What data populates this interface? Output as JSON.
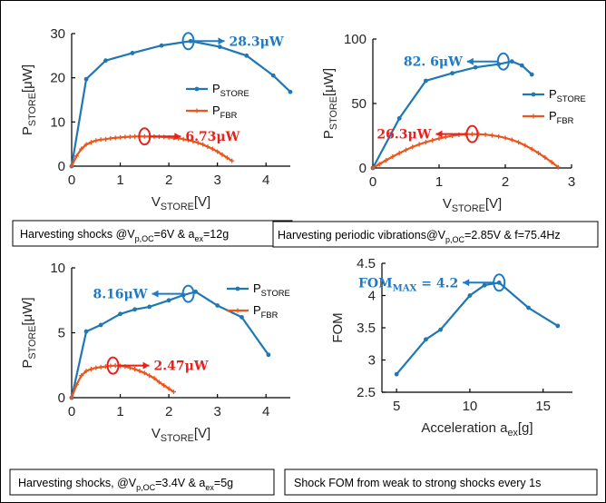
{
  "colors": {
    "store": "#1f77b4",
    "fbr": "#e8571d",
    "annot_store": "#1f7ac4",
    "annot_fbr": "#e8211d"
  },
  "chart_data": [
    {
      "type": "line",
      "id": "p1",
      "xlim": [
        0,
        4.5
      ],
      "ylim": [
        0,
        30
      ],
      "xticks": [
        0,
        1,
        2,
        3,
        4
      ],
      "yticks": [
        0,
        10,
        20,
        30
      ],
      "xlabel_main": "V",
      "xlabel_sub": "STORE",
      "xlabel_tail": "[V]",
      "ylabel_main": "P",
      "ylabel_sub": "STORE",
      "ylabel_tail": "[μW]",
      "series": [
        {
          "name_main": "P",
          "name_sub": "STORE",
          "role": "store",
          "marker": "dot",
          "x": [
            0,
            0.3,
            0.7,
            1.25,
            1.85,
            2.45,
            3.05,
            3.6,
            4.15,
            4.5
          ],
          "y": [
            0,
            19.7,
            23.9,
            25.6,
            27.3,
            28.3,
            27.0,
            25.0,
            20.5,
            16.8
          ]
        },
        {
          "name_main": "P",
          "name_sub": "FBR",
          "role": "fbr",
          "marker": "plus",
          "x": [
            0,
            0.1,
            0.2,
            0.3,
            0.4,
            0.5,
            0.6,
            0.7,
            0.8,
            0.9,
            1.0,
            1.1,
            1.2,
            1.3,
            1.4,
            1.5,
            1.6,
            1.7,
            1.8,
            1.9,
            2.0,
            2.1,
            2.2,
            2.3,
            2.4,
            2.5,
            2.6,
            2.7,
            2.8,
            2.9,
            3.0,
            3.1,
            3.2,
            3.3
          ],
          "y": [
            0,
            2.3,
            3.9,
            4.9,
            5.4,
            5.8,
            6.0,
            6.1,
            6.3,
            6.4,
            6.5,
            6.6,
            6.65,
            6.7,
            6.73,
            6.72,
            6.7,
            6.68,
            6.65,
            6.6,
            6.5,
            6.4,
            6.3,
            6.1,
            5.9,
            5.6,
            5.3,
            4.9,
            4.4,
            3.9,
            3.3,
            2.6,
            1.9,
            1.2
          ]
        }
      ],
      "annotations": [
        {
          "text": "28.3μW",
          "role": "store",
          "x": 2.4,
          "y": 28.3,
          "dir": "right"
        },
        {
          "text": "6.73μW",
          "role": "fbr",
          "x": 1.5,
          "y": 6.73,
          "dir": "right"
        }
      ],
      "caption": {
        "pre": "Harvesting shocks @V",
        "sub1": "p,OC",
        "mid": "=6V & a",
        "sub2": "ex",
        "post": "=12g"
      }
    },
    {
      "type": "line",
      "id": "p2",
      "xlim": [
        0,
        3
      ],
      "ylim": [
        0,
        100
      ],
      "xticks": [
        0,
        1,
        2,
        3
      ],
      "yticks": [
        0,
        50,
        100
      ],
      "xlabel_main": "V",
      "xlabel_sub": "STORE",
      "xlabel_tail": "[V]",
      "ylabel_main": "P",
      "ylabel_sub": "STORE",
      "ylabel_tail": "[μW]",
      "series": [
        {
          "name_main": "P",
          "name_sub": "STORE",
          "role": "store",
          "marker": "dot",
          "x": [
            0,
            0.4,
            0.8,
            1.2,
            1.55,
            1.9,
            2.1,
            2.25,
            2.4
          ],
          "y": [
            0,
            38.5,
            67.6,
            73.5,
            78.0,
            80.5,
            82.6,
            79.5,
            72.5
          ]
        },
        {
          "name_main": "P",
          "name_sub": "FBR",
          "role": "fbr",
          "marker": "plus",
          "x": [
            0,
            0.1,
            0.2,
            0.3,
            0.4,
            0.5,
            0.6,
            0.7,
            0.8,
            0.9,
            1.0,
            1.1,
            1.2,
            1.3,
            1.4,
            1.5,
            1.6,
            1.7,
            1.8,
            1.9,
            2.0,
            2.1,
            2.2,
            2.3,
            2.4,
            2.5,
            2.6,
            2.7,
            2.8
          ],
          "y": [
            0,
            3.0,
            6.0,
            8.8,
            11.5,
            14.0,
            16.3,
            18.3,
            20.0,
            21.5,
            22.9,
            24.0,
            25.0,
            25.7,
            26.1,
            26.3,
            26.2,
            25.9,
            25.3,
            24.5,
            23.3,
            21.8,
            19.9,
            17.5,
            14.7,
            11.6,
            8.2,
            4.5,
            0.6
          ]
        }
      ],
      "annotations": [
        {
          "text": "82. 6μW",
          "role": "store",
          "x": 1.97,
          "y": 82.6,
          "dir": "left"
        },
        {
          "text": "26.3μW",
          "role": "fbr",
          "x": 1.5,
          "y": 26.3,
          "dir": "left"
        }
      ],
      "caption": {
        "pre": "Harvesting periodic vibrations@V",
        "sub1": "p,OC",
        "mid": "=2.85V  & f=75.4Hz",
        "sub2": "",
        "post": ""
      }
    },
    {
      "type": "line",
      "id": "p3",
      "xlim": [
        0,
        4.5
      ],
      "ylim": [
        0,
        10
      ],
      "xticks": [
        0,
        1,
        2,
        3,
        4
      ],
      "yticks": [
        0,
        5,
        10
      ],
      "xlabel_main": "V",
      "xlabel_sub": "STORE",
      "xlabel_tail": "[V]",
      "ylabel_main": "P",
      "ylabel_sub": "STORE",
      "ylabel_tail": "[μW]",
      "series": [
        {
          "name_main": "P",
          "name_sub": "STORE",
          "role": "store",
          "marker": "dot",
          "x": [
            0,
            0.3,
            0.6,
            1.0,
            1.3,
            1.6,
            2.0,
            2.3,
            2.55,
            3.0,
            3.5,
            4.05
          ],
          "y": [
            0,
            5.1,
            5.6,
            6.45,
            6.8,
            7.0,
            7.5,
            7.9,
            8.16,
            7.1,
            6.2,
            3.3
          ]
        },
        {
          "name_main": "P",
          "name_sub": "FBR",
          "role": "fbr",
          "marker": "plus",
          "x": [
            0,
            0.1,
            0.2,
            0.3,
            0.4,
            0.5,
            0.6,
            0.7,
            0.8,
            0.9,
            1.0,
            1.1,
            1.2,
            1.3,
            1.4,
            1.5,
            1.6,
            1.7,
            1.8,
            1.9,
            2.0,
            2.1
          ],
          "y": [
            0,
            1.0,
            1.7,
            2.05,
            2.2,
            2.3,
            2.35,
            2.4,
            2.45,
            2.47,
            2.45,
            2.4,
            2.3,
            2.2,
            2.05,
            1.9,
            1.7,
            1.5,
            1.2,
            0.95,
            0.7,
            0.45
          ]
        }
      ],
      "annotations": [
        {
          "text": "8.16μW",
          "role": "store",
          "x": 2.4,
          "y": 8.0,
          "dir": "left"
        },
        {
          "text": "2.47μW",
          "role": "fbr",
          "x": 0.85,
          "y": 2.47,
          "dir": "right"
        }
      ],
      "caption": {
        "pre": "Harvesting shocks, @V",
        "sub1": "p,OC",
        "mid": "=3.4V & a",
        "sub2": "ex",
        "post": "=5g"
      }
    },
    {
      "type": "line",
      "id": "p4",
      "xlim": [
        4,
        17
      ],
      "ylim": [
        2.5,
        4.5
      ],
      "xticks": [
        5,
        10,
        15
      ],
      "yticks": [
        2.5,
        3,
        3.5,
        4,
        4.5
      ],
      "ytick_labels": [
        "2.5",
        "3",
        "3.5",
        "4",
        "4.5"
      ],
      "xlabel_main": "Acceleration a",
      "xlabel_sub": "ex",
      "xlabel_tail": "[g]",
      "ylabel_main": "FOM",
      "ylabel_sub": "",
      "ylabel_tail": "",
      "series": [
        {
          "name_main": "",
          "name_sub": "",
          "role": "store",
          "marker": "dot",
          "x": [
            5,
            7,
            8,
            10,
            11,
            12,
            14,
            16
          ],
          "y": [
            2.78,
            3.32,
            3.47,
            4.0,
            4.16,
            4.2,
            3.81,
            3.53
          ]
        }
      ],
      "annotations": [
        {
          "text_main": "FOM",
          "text_sub": "MAX",
          "text_tail": " = 4.2",
          "role": "store",
          "x": 12,
          "y": 4.2,
          "dir": "left"
        }
      ],
      "caption": {
        "pre": "Shock FOM from weak to strong shocks every 1s",
        "sub1": "",
        "mid": "",
        "sub2": "",
        "post": ""
      }
    }
  ]
}
